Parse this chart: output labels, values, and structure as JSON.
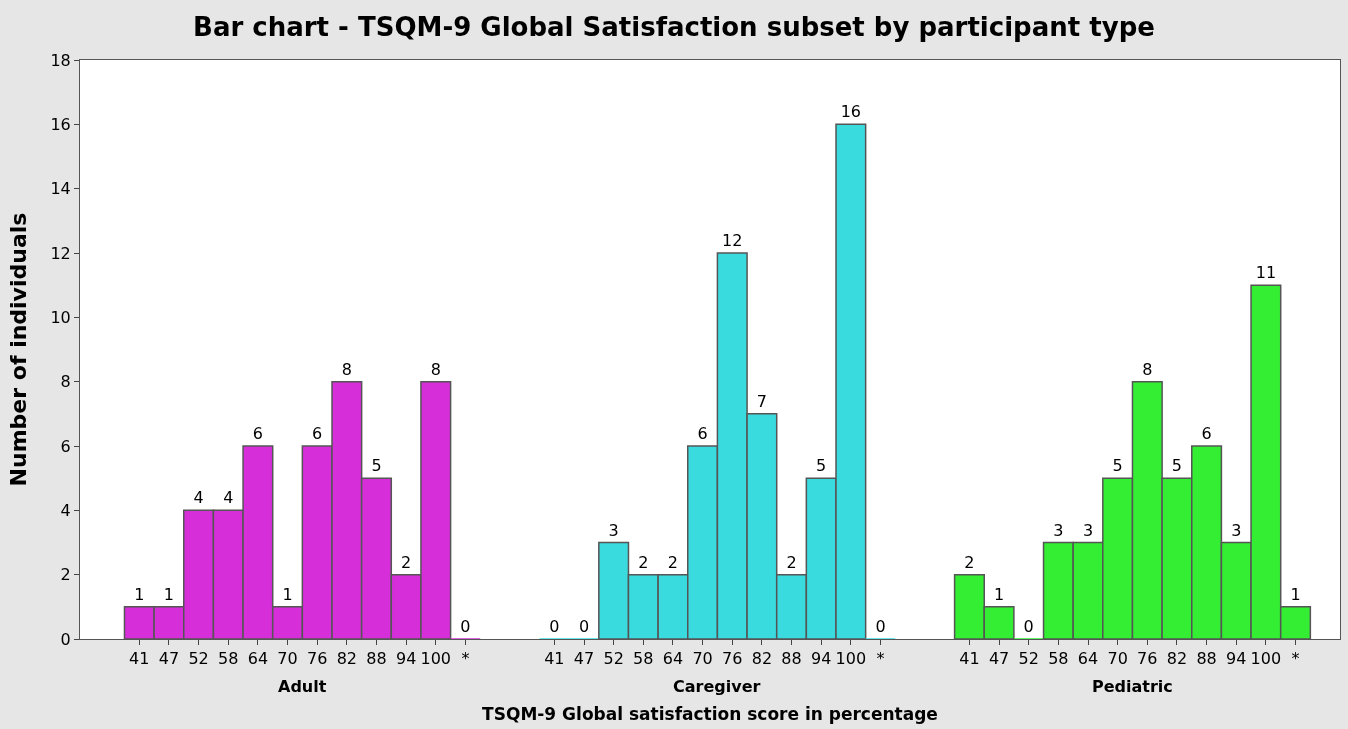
{
  "chart_data": {
    "type": "bar",
    "title": "Bar chart - TSQM-9 Global Satisfaction subset by participant type",
    "xlabel": "TSQM-9 Global satisfaction score in percentage",
    "ylabel": "Number of individuals",
    "categories": [
      "41",
      "47",
      "52",
      "58",
      "64",
      "70",
      "76",
      "82",
      "88",
      "94",
      "100",
      "*",
      null,
      null,
      "41",
      "47",
      "52",
      "58",
      "64",
      "70",
      "76",
      "82",
      "88",
      "94",
      "100",
      "*",
      null,
      null,
      "41",
      "47",
      "52",
      "58",
      "64",
      "70",
      "76",
      "82",
      "88",
      "94",
      "100",
      "*"
    ],
    "series": [
      {
        "name": "Adult",
        "color": "#d62ed9",
        "values": [
          1,
          1,
          4,
          4,
          6,
          1,
          6,
          8,
          5,
          2,
          8,
          0,
          null,
          null,
          null,
          null,
          null,
          null,
          null,
          null,
          null,
          null,
          null,
          null,
          null,
          null,
          null,
          null,
          null,
          null,
          null,
          null,
          null,
          null,
          null,
          null,
          null,
          null,
          null,
          null
        ]
      },
      {
        "name": "Caregiver",
        "color": "#3adbdf",
        "values": [
          null,
          null,
          null,
          null,
          null,
          null,
          null,
          null,
          null,
          null,
          null,
          null,
          null,
          null,
          0,
          0,
          3,
          2,
          2,
          6,
          12,
          7,
          2,
          5,
          16,
          0,
          null,
          null,
          null,
          null,
          null,
          null,
          null,
          null,
          null,
          null,
          null,
          null,
          null,
          null
        ]
      },
      {
        "name": "Pediatric",
        "color": "#33ee33",
        "values": [
          null,
          null,
          null,
          null,
          null,
          null,
          null,
          null,
          null,
          null,
          null,
          null,
          null,
          null,
          null,
          null,
          null,
          null,
          null,
          null,
          null,
          null,
          null,
          null,
          null,
          null,
          null,
          null,
          2,
          1,
          0,
          3,
          3,
          5,
          8,
          5,
          6,
          3,
          11,
          1
        ]
      }
    ],
    "ylim": [
      0,
      18
    ],
    "yticks": [
      0,
      2,
      4,
      6,
      8,
      10,
      12,
      14,
      16,
      18
    ],
    "grid": false,
    "legend": false,
    "data_labels": true
  }
}
